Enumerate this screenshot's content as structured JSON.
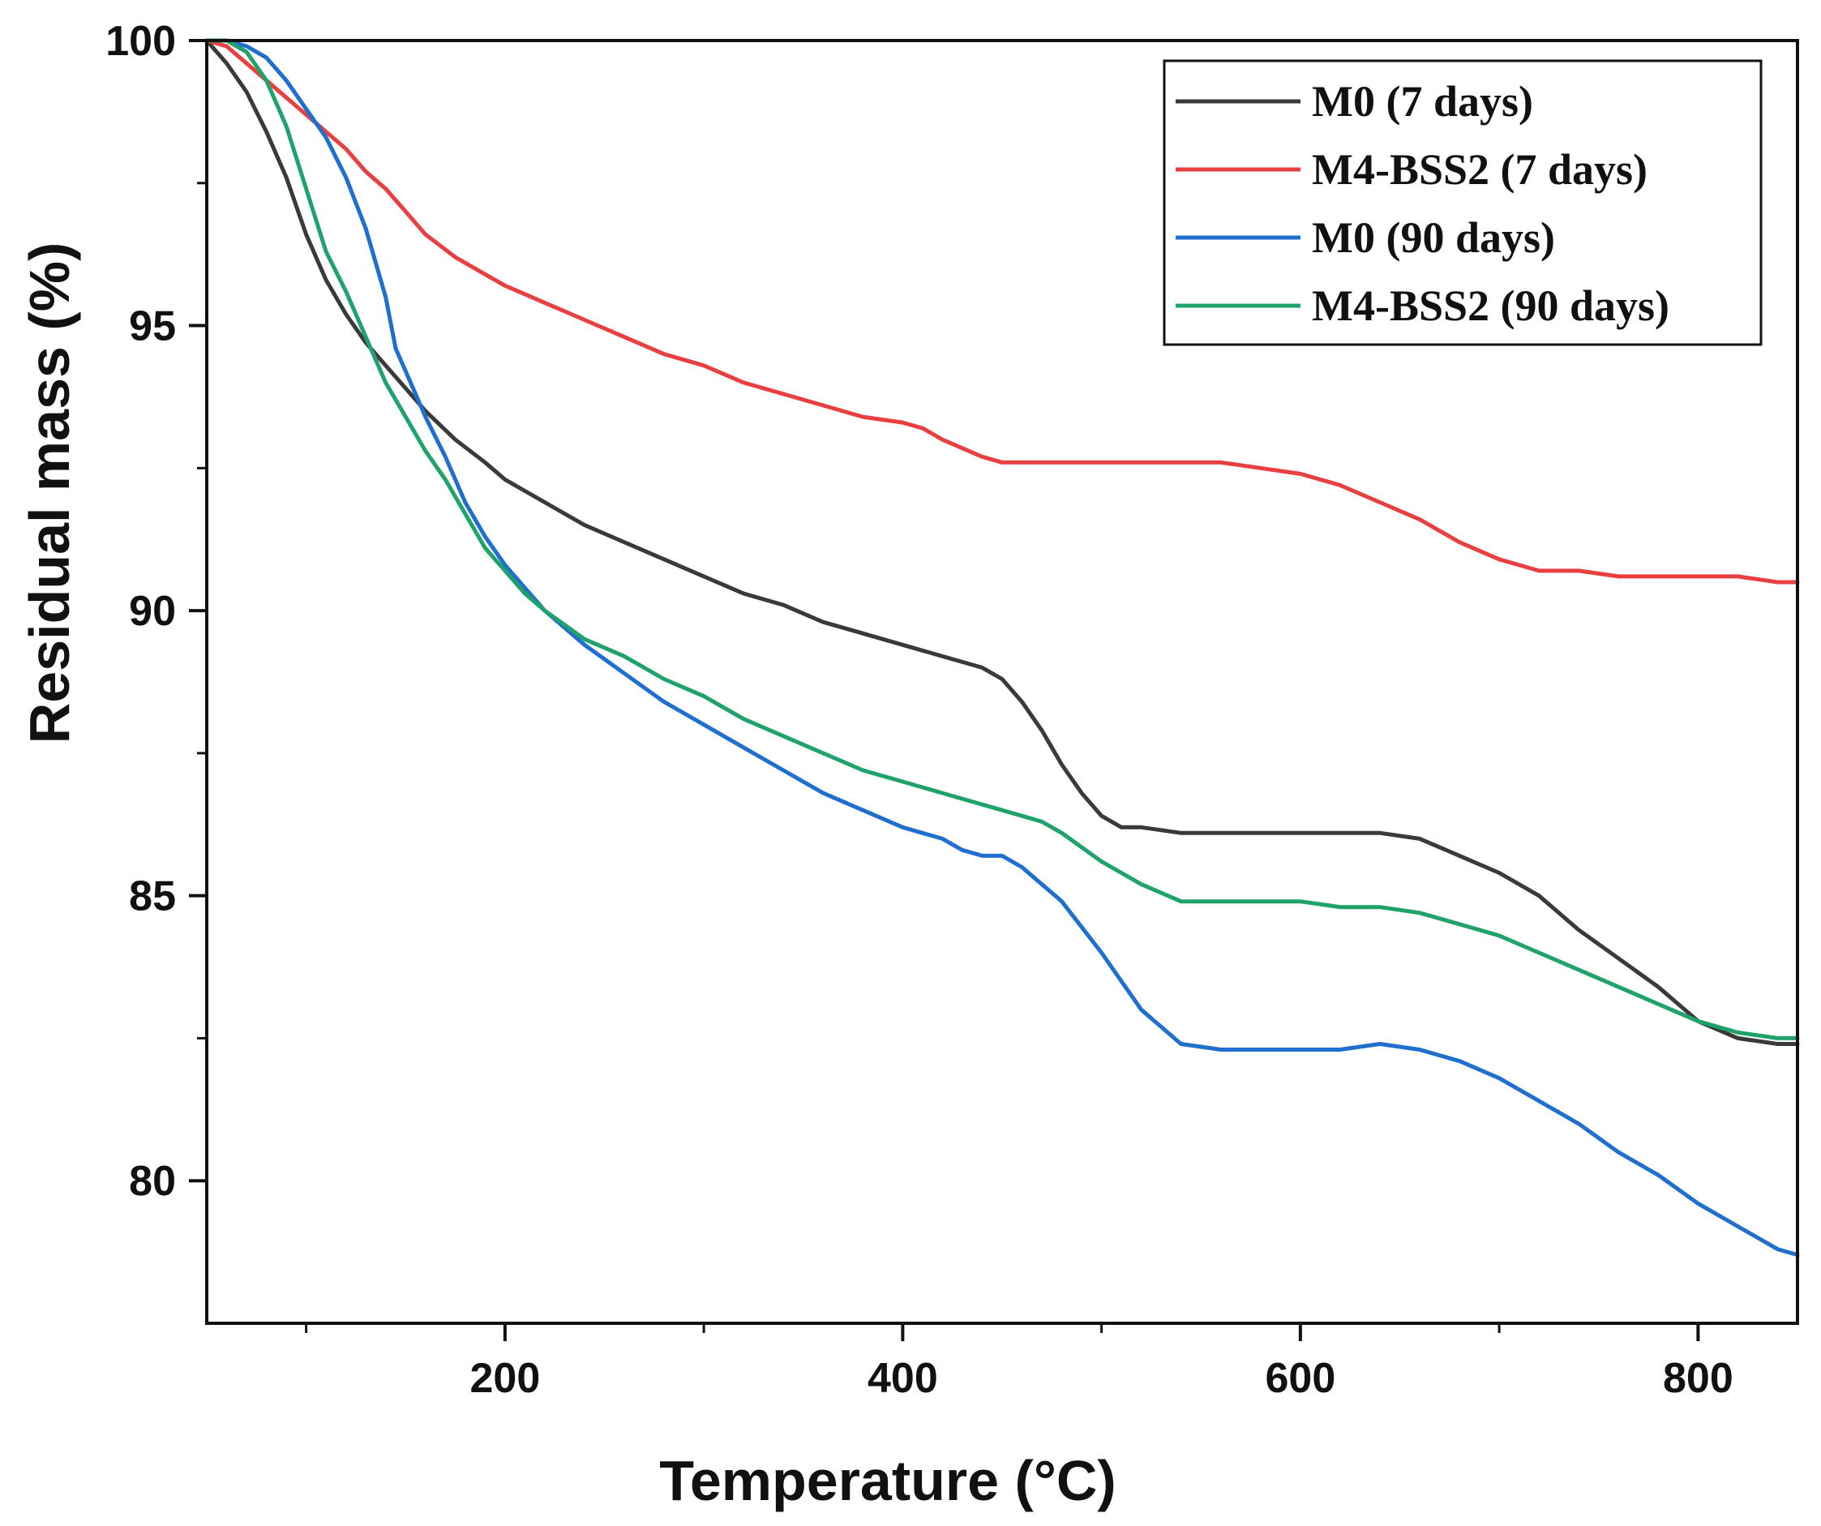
{
  "chart_data": {
    "type": "line",
    "title": "",
    "xlabel": "Temperature (°C)",
    "ylabel": "Residual mass (%)",
    "xlim": [
      50,
      850
    ],
    "ylim": [
      77.5,
      100
    ],
    "x_ticks": [
      200,
      400,
      600,
      800
    ],
    "x_minor_ticks": [
      100,
      300,
      500,
      700
    ],
    "y_ticks": [
      80,
      85,
      90,
      95,
      100
    ],
    "y_minor_ticks": [
      82.5,
      87.5,
      92.5,
      97.5
    ],
    "legend_position": "top-right",
    "series": [
      {
        "name": "M0 (7 days)",
        "color": "#3a3a3a",
        "x": [
          50,
          60,
          70,
          80,
          90,
          100,
          110,
          120,
          130,
          140,
          150,
          160,
          175,
          190,
          200,
          220,
          240,
          260,
          280,
          300,
          320,
          340,
          360,
          380,
          400,
          420,
          440,
          450,
          460,
          470,
          480,
          490,
          500,
          510,
          520,
          540,
          560,
          580,
          600,
          620,
          640,
          660,
          680,
          700,
          720,
          740,
          760,
          780,
          800,
          820,
          840,
          850
        ],
        "y": [
          100,
          99.6,
          99.1,
          98.4,
          97.6,
          96.6,
          95.8,
          95.2,
          94.7,
          94.3,
          93.9,
          93.5,
          93.0,
          92.6,
          92.3,
          91.9,
          91.5,
          91.2,
          90.9,
          90.6,
          90.3,
          90.1,
          89.8,
          89.6,
          89.4,
          89.2,
          89.0,
          88.8,
          88.4,
          87.9,
          87.3,
          86.8,
          86.4,
          86.2,
          86.2,
          86.1,
          86.1,
          86.1,
          86.1,
          86.1,
          86.1,
          86.0,
          85.7,
          85.4,
          85.0,
          84.4,
          83.9,
          83.4,
          82.8,
          82.5,
          82.4,
          82.4
        ]
      },
      {
        "name": "M4-BSS2 (7 days)",
        "color": "#e84040",
        "x": [
          50,
          60,
          70,
          80,
          90,
          100,
          110,
          120,
          130,
          140,
          150,
          160,
          175,
          190,
          200,
          220,
          240,
          260,
          280,
          300,
          320,
          340,
          360,
          380,
          400,
          410,
          420,
          440,
          450,
          460,
          480,
          500,
          520,
          540,
          560,
          580,
          600,
          620,
          640,
          660,
          680,
          700,
          720,
          740,
          760,
          780,
          800,
          820,
          840,
          850
        ],
        "y": [
          100,
          99.9,
          99.6,
          99.3,
          99.0,
          98.7,
          98.4,
          98.1,
          97.7,
          97.4,
          97.0,
          96.6,
          96.2,
          95.9,
          95.7,
          95.4,
          95.1,
          94.8,
          94.5,
          94.3,
          94.0,
          93.8,
          93.6,
          93.4,
          93.3,
          93.2,
          93.0,
          92.7,
          92.6,
          92.6,
          92.6,
          92.6,
          92.6,
          92.6,
          92.6,
          92.5,
          92.4,
          92.2,
          91.9,
          91.6,
          91.2,
          90.9,
          90.7,
          90.7,
          90.6,
          90.6,
          90.6,
          90.6,
          90.5,
          90.5
        ]
      },
      {
        "name": "M0 (90 days)",
        "color": "#1f6fcf",
        "x": [
          50,
          60,
          70,
          80,
          90,
          100,
          110,
          120,
          130,
          140,
          145,
          150,
          160,
          170,
          180,
          190,
          200,
          210,
          220,
          240,
          260,
          280,
          300,
          320,
          340,
          360,
          380,
          400,
          420,
          430,
          440,
          450,
          460,
          480,
          500,
          520,
          540,
          560,
          580,
          600,
          620,
          640,
          660,
          680,
          700,
          720,
          740,
          760,
          780,
          800,
          820,
          840,
          850
        ],
        "y": [
          100,
          100,
          99.9,
          99.7,
          99.3,
          98.8,
          98.3,
          97.6,
          96.7,
          95.5,
          94.6,
          94.2,
          93.4,
          92.7,
          91.9,
          91.3,
          90.8,
          90.4,
          90.0,
          89.4,
          88.9,
          88.4,
          88.0,
          87.6,
          87.2,
          86.8,
          86.5,
          86.2,
          86.0,
          85.8,
          85.7,
          85.7,
          85.5,
          84.9,
          84.0,
          83.0,
          82.4,
          82.3,
          82.3,
          82.3,
          82.3,
          82.4,
          82.3,
          82.1,
          81.8,
          81.4,
          81.0,
          80.5,
          80.1,
          79.6,
          79.2,
          78.8,
          78.7
        ]
      },
      {
        "name": "M4-BSS2 (90 days)",
        "color": "#1fa36b",
        "x": [
          50,
          60,
          70,
          80,
          90,
          100,
          110,
          120,
          130,
          140,
          150,
          160,
          170,
          180,
          190,
          200,
          210,
          220,
          240,
          260,
          280,
          300,
          320,
          340,
          360,
          380,
          400,
          420,
          440,
          460,
          470,
          480,
          500,
          520,
          540,
          560,
          580,
          600,
          620,
          640,
          660,
          680,
          700,
          720,
          740,
          760,
          780,
          800,
          820,
          840,
          850
        ],
        "y": [
          100,
          100,
          99.8,
          99.3,
          98.5,
          97.4,
          96.3,
          95.6,
          94.8,
          94.0,
          93.4,
          92.8,
          92.3,
          91.7,
          91.1,
          90.7,
          90.3,
          90.0,
          89.5,
          89.2,
          88.8,
          88.5,
          88.1,
          87.8,
          87.5,
          87.2,
          87.0,
          86.8,
          86.6,
          86.4,
          86.3,
          86.1,
          85.6,
          85.2,
          84.9,
          84.9,
          84.9,
          84.9,
          84.8,
          84.8,
          84.7,
          84.5,
          84.3,
          84.0,
          83.7,
          83.4,
          83.1,
          82.8,
          82.6,
          82.5,
          82.5
        ]
      }
    ]
  }
}
